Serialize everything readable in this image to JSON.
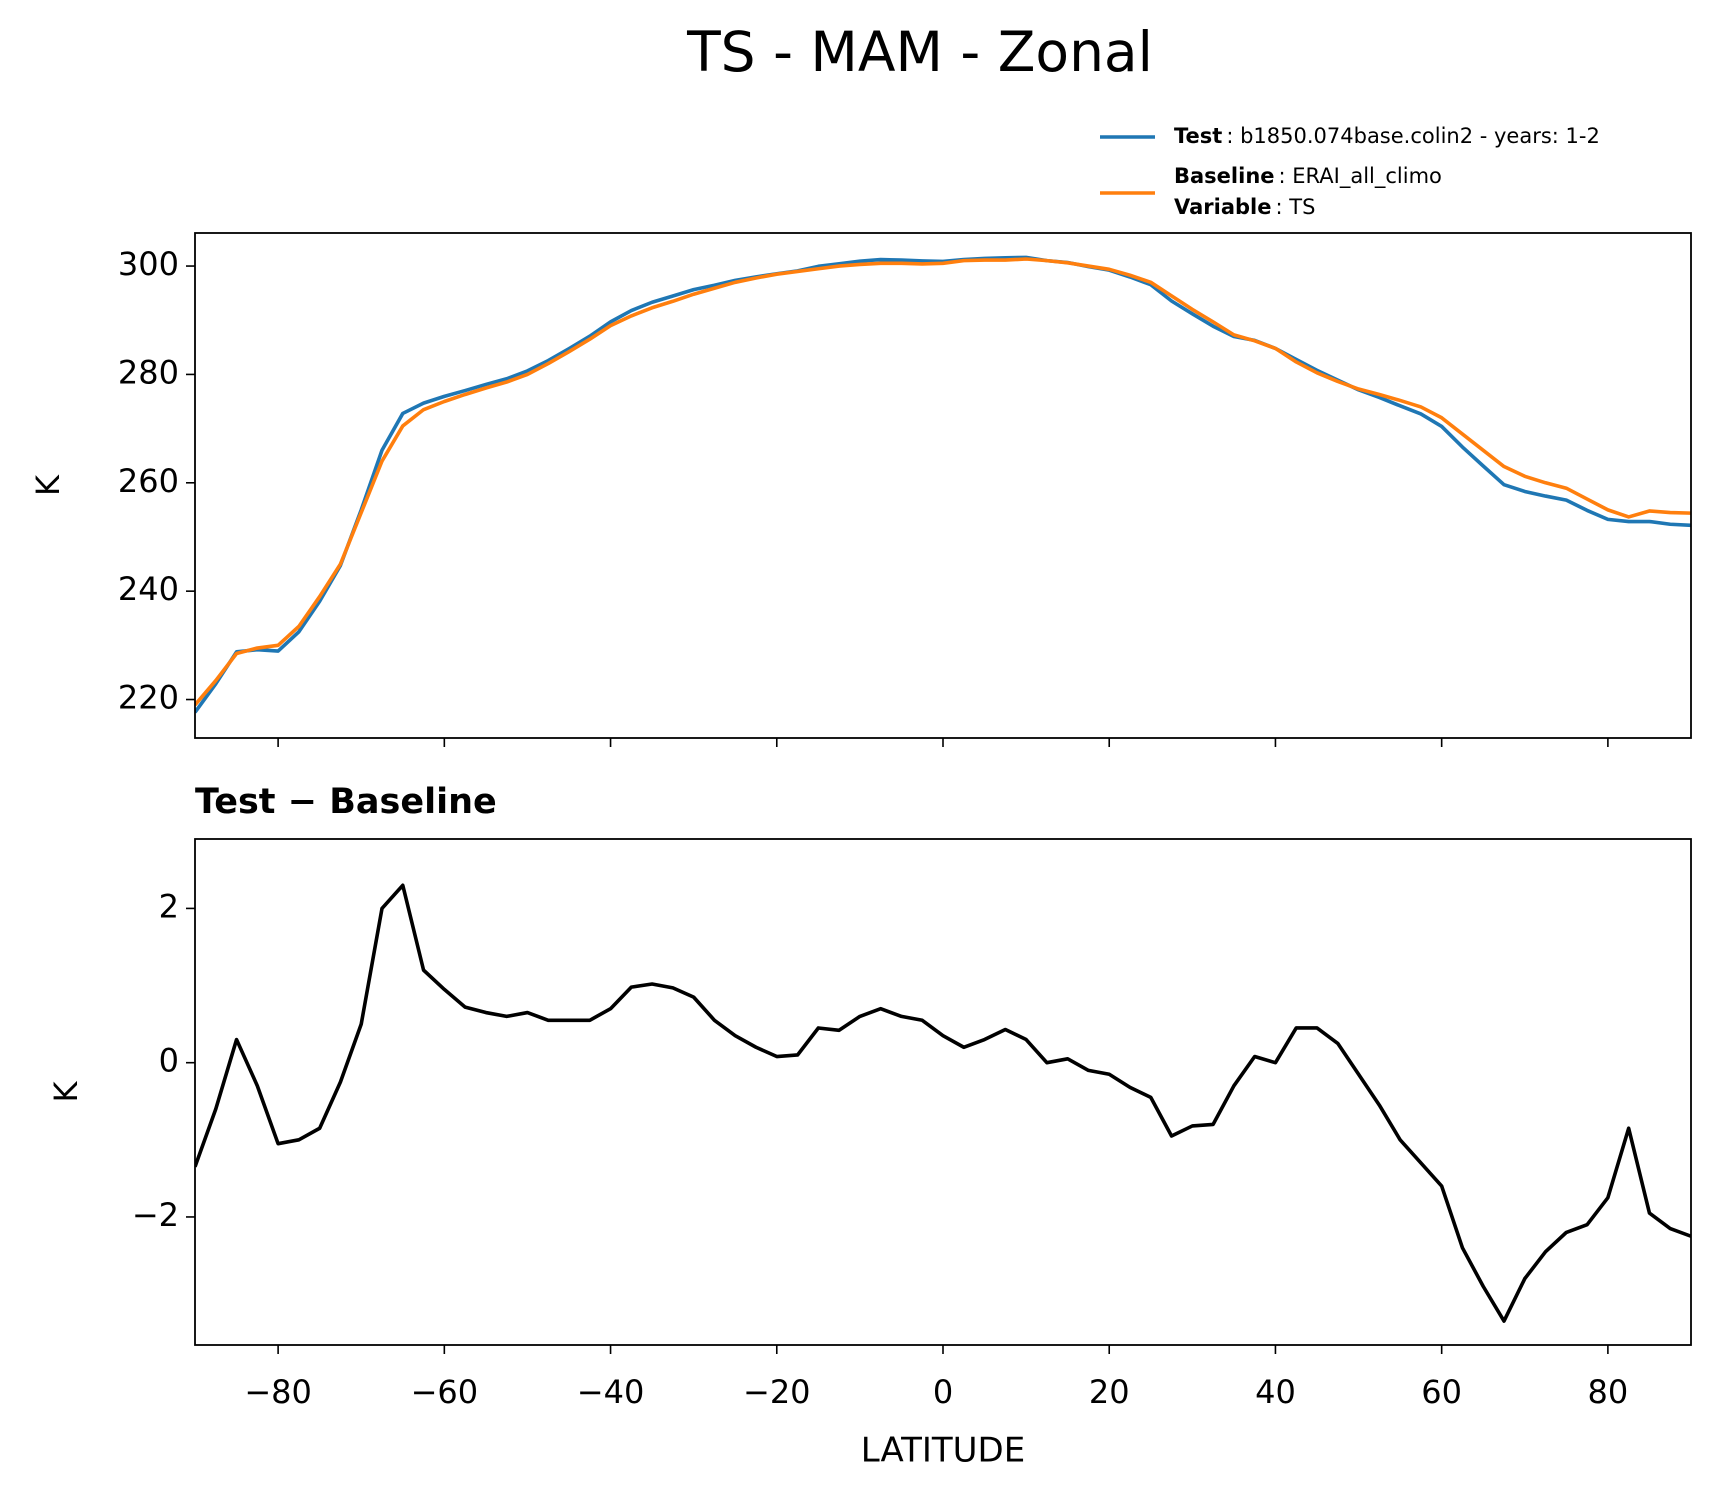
{
  "chart_data": [
    {
      "type": "line",
      "title": "TS - MAM - Zonal",
      "ylabel": "K",
      "x": [
        -90,
        -87.5,
        -85,
        -82.5,
        -80,
        -77.5,
        -75,
        -72.5,
        -70,
        -67.5,
        -65,
        -62.5,
        -60,
        -57.5,
        -55,
        -52.5,
        -50,
        -47.5,
        -45,
        -42.5,
        -40,
        -37.5,
        -35,
        -32.5,
        -30,
        -27.5,
        -25,
        -22.5,
        -20,
        -17.5,
        -15,
        -12.5,
        -10,
        -7.5,
        -5,
        -2.5,
        0,
        2.5,
        5,
        7.5,
        10,
        12.5,
        15,
        17.5,
        20,
        22.5,
        25,
        27.5,
        30,
        32.5,
        35,
        37.5,
        40,
        42.5,
        45,
        47.5,
        50,
        52.5,
        55,
        57.5,
        60,
        62.5,
        65,
        67.5,
        70,
        72.5,
        75,
        77.5,
        80,
        82.5,
        85,
        87.5,
        90
      ],
      "series": [
        {
          "name": "Test",
          "description": ": b1850.074base.colin2 - years: 1-2",
          "color": "#1f77b4",
          "values": [
            217.65,
            222.9,
            228.8,
            229.2,
            228.95,
            232.5,
            238.15,
            244.75,
            255,
            266,
            272.8,
            274.7,
            275.95,
            277.02,
            278.15,
            279.2,
            280.65,
            282.55,
            284.75,
            287.05,
            289.7,
            291.78,
            293.32,
            294.47,
            295.65,
            296.45,
            297.35,
            298,
            298.58,
            299.1,
            299.95,
            300.42,
            300.9,
            301.2,
            301.1,
            300.95,
            300.85,
            301.2,
            301.4,
            301.53,
            301.6,
            301,
            300.65,
            299.9,
            299.25,
            297.98,
            296.55,
            293.55,
            291.18,
            288.9,
            287,
            286.28,
            284.8,
            282.75,
            280.75,
            278.95,
            277.15,
            275.75,
            274.2,
            272.7,
            270.4,
            266.6,
            263.1,
            259.65,
            258.4,
            257.55,
            256.8,
            254.9,
            253.25,
            252.85,
            252.85,
            252.35,
            252.15
          ]
        },
        {
          "name": "Baseline",
          "description": ": ERAI_all_climo",
          "color": "#ff7f0e",
          "values": [
            219,
            223.5,
            228.5,
            229.5,
            230,
            233.5,
            239,
            245,
            254.5,
            264,
            270.5,
            273.5,
            275,
            276.3,
            277.5,
            278.6,
            280,
            282,
            284.2,
            286.5,
            289,
            290.8,
            292.3,
            293.5,
            294.8,
            295.9,
            297,
            297.8,
            298.5,
            299,
            299.5,
            300,
            300.3,
            300.5,
            300.5,
            300.4,
            300.5,
            301,
            301.1,
            301.1,
            301.3,
            301,
            300.6,
            300,
            299.4,
            298.3,
            297,
            294.5,
            292,
            289.7,
            287.3,
            286.2,
            284.8,
            282.3,
            280.3,
            278.7,
            277.3,
            276.3,
            275.2,
            274,
            272,
            269,
            266,
            263,
            261.2,
            260,
            259,
            257,
            255,
            253.7,
            254.8,
            254.5,
            254.4
          ]
        }
      ],
      "legend_note": {
        "name": "Variable",
        "description": ": TS"
      },
      "xlim": [
        -90,
        90
      ],
      "xticks": [
        {
          "value": -80,
          "label": "−80"
        },
        {
          "value": -60,
          "label": "−60"
        },
        {
          "value": -40,
          "label": "−40"
        },
        {
          "value": -20,
          "label": "−20"
        },
        0,
        20,
        40,
        60,
        80
      ],
      "ylim": [
        212.9,
        306.1
      ],
      "yticks": [
        220,
        240,
        260,
        280,
        300
      ]
    },
    {
      "type": "line",
      "title": "Test − Baseline",
      "ylabel": "K",
      "xlabel": "LATITUDE",
      "x": [
        -90,
        -87.5,
        -85,
        -82.5,
        -80,
        -77.5,
        -75,
        -72.5,
        -70,
        -67.5,
        -65,
        -62.5,
        -60,
        -57.5,
        -55,
        -52.5,
        -50,
        -47.5,
        -45,
        -42.5,
        -40,
        -37.5,
        -35,
        -32.5,
        -30,
        -27.5,
        -25,
        -22.5,
        -20,
        -17.5,
        -15,
        -12.5,
        -10,
        -7.5,
        -5,
        -2.5,
        0,
        2.5,
        5,
        7.5,
        10,
        12.5,
        15,
        17.5,
        20,
        22.5,
        25,
        27.5,
        30,
        32.5,
        35,
        37.5,
        40,
        42.5,
        45,
        47.5,
        50,
        52.5,
        55,
        57.5,
        60,
        62.5,
        65,
        67.5,
        70,
        72.5,
        75,
        77.5,
        80,
        82.5,
        85,
        87.5,
        90
      ],
      "series": [
        {
          "color": "#000000",
          "values": [
            -1.35,
            -0.6,
            0.3,
            -0.3,
            -1.05,
            -1.0,
            -0.85,
            -0.25,
            0.5,
            2.0,
            2.3,
            1.2,
            0.95,
            0.72,
            0.65,
            0.6,
            0.65,
            0.55,
            0.55,
            0.55,
            0.7,
            0.98,
            1.02,
            0.97,
            0.85,
            0.55,
            0.35,
            0.2,
            0.08,
            0.1,
            0.45,
            0.42,
            0.6,
            0.7,
            0.6,
            0.55,
            0.35,
            0.2,
            0.3,
            0.43,
            0.3,
            0,
            0.05,
            -0.1,
            -0.15,
            -0.32,
            -0.45,
            -0.95,
            -0.82,
            -0.8,
            -0.3,
            0.08,
            0,
            0.45,
            0.45,
            0.25,
            -0.15,
            -0.55,
            -1.0,
            -1.3,
            -1.6,
            -2.4,
            -2.9,
            -3.35,
            -2.8,
            -2.45,
            -2.2,
            -2.1,
            -1.75,
            -0.85,
            -1.95,
            -2.15,
            -2.25
          ]
        }
      ],
      "xlim": [
        -90,
        90
      ],
      "xticks": [
        {
          "value": -80,
          "label": "−80"
        },
        {
          "value": -60,
          "label": "−60"
        },
        {
          "value": -40,
          "label": "−40"
        },
        {
          "value": -20,
          "label": "−20"
        },
        0,
        20,
        40,
        60,
        80
      ],
      "ylim": [
        -3.66,
        2.9
      ],
      "yticks": [
        {
          "value": -2,
          "label": "−2"
        },
        0,
        2
      ]
    }
  ]
}
